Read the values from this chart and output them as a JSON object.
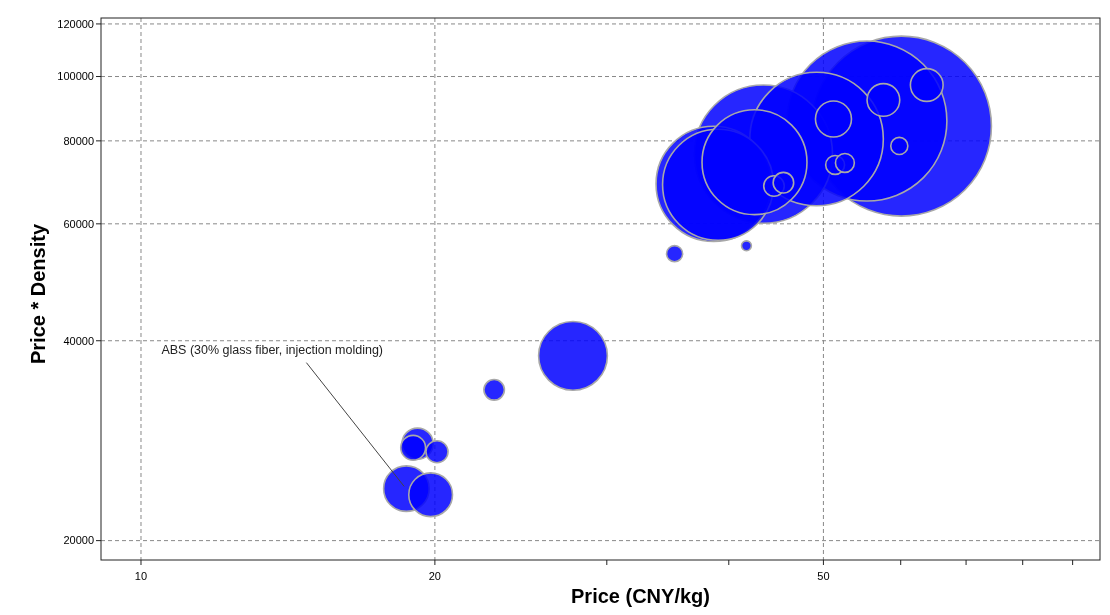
{
  "chart_data": {
    "type": "bubble",
    "xlabel": "Price (CNY/kg)",
    "ylabel": "Price * Density",
    "log": "xy",
    "grid": true,
    "xlim": [
      9.1,
      96
    ],
    "xticks": [
      10,
      20,
      {
        "value": 30,
        "label": null
      },
      {
        "value": 40,
        "label": null
      },
      50,
      {
        "value": 60,
        "label": null
      },
      {
        "value": 70,
        "label": null
      },
      {
        "value": 80,
        "label": null
      },
      {
        "value": 90,
        "label": null
      }
    ],
    "ylim": [
      18700,
      122500
    ],
    "yticks": [
      20000,
      40000,
      60000,
      80000,
      100000,
      120000
    ],
    "series": [
      {
        "color": "#0000ff",
        "x": [
          60.1,
          55.4,
          49.2,
          43.4,
          42.5,
          38.6,
          39.0,
          63.8,
          57.6,
          51.2,
          59.8,
          51.4,
          52.6,
          44.5,
          45.5,
          35.2,
          41.7,
          27.7,
          23.0,
          19.2,
          19.0,
          20.1,
          19.8,
          18.7
        ],
        "values": [
          84200,
          85700,
          80500,
          76400,
          74300,
          68900,
          68700,
          97100,
          92200,
          86300,
          78600,
          73600,
          74100,
          68400,
          69200,
          54100,
          55600,
          37960,
          33740,
          27990,
          27600,
          27220,
          23450,
          23950
        ],
        "sizes": [
          1,
          0.79,
          0.55,
          0.59,
          0.34,
          0.41,
          0.38,
          0.033,
          0.033,
          0.04,
          0.009,
          0.011,
          0.011,
          0.013,
          0.013,
          0.008,
          0.003,
          0.146,
          0.013,
          0.03,
          0.019,
          0.015,
          0.059,
          0.064
        ]
      }
    ],
    "annotations": [
      {
        "text": "ABS (30% glass fiber, injection molding)",
        "x": 18.7,
        "y": 23950
      }
    ]
  }
}
